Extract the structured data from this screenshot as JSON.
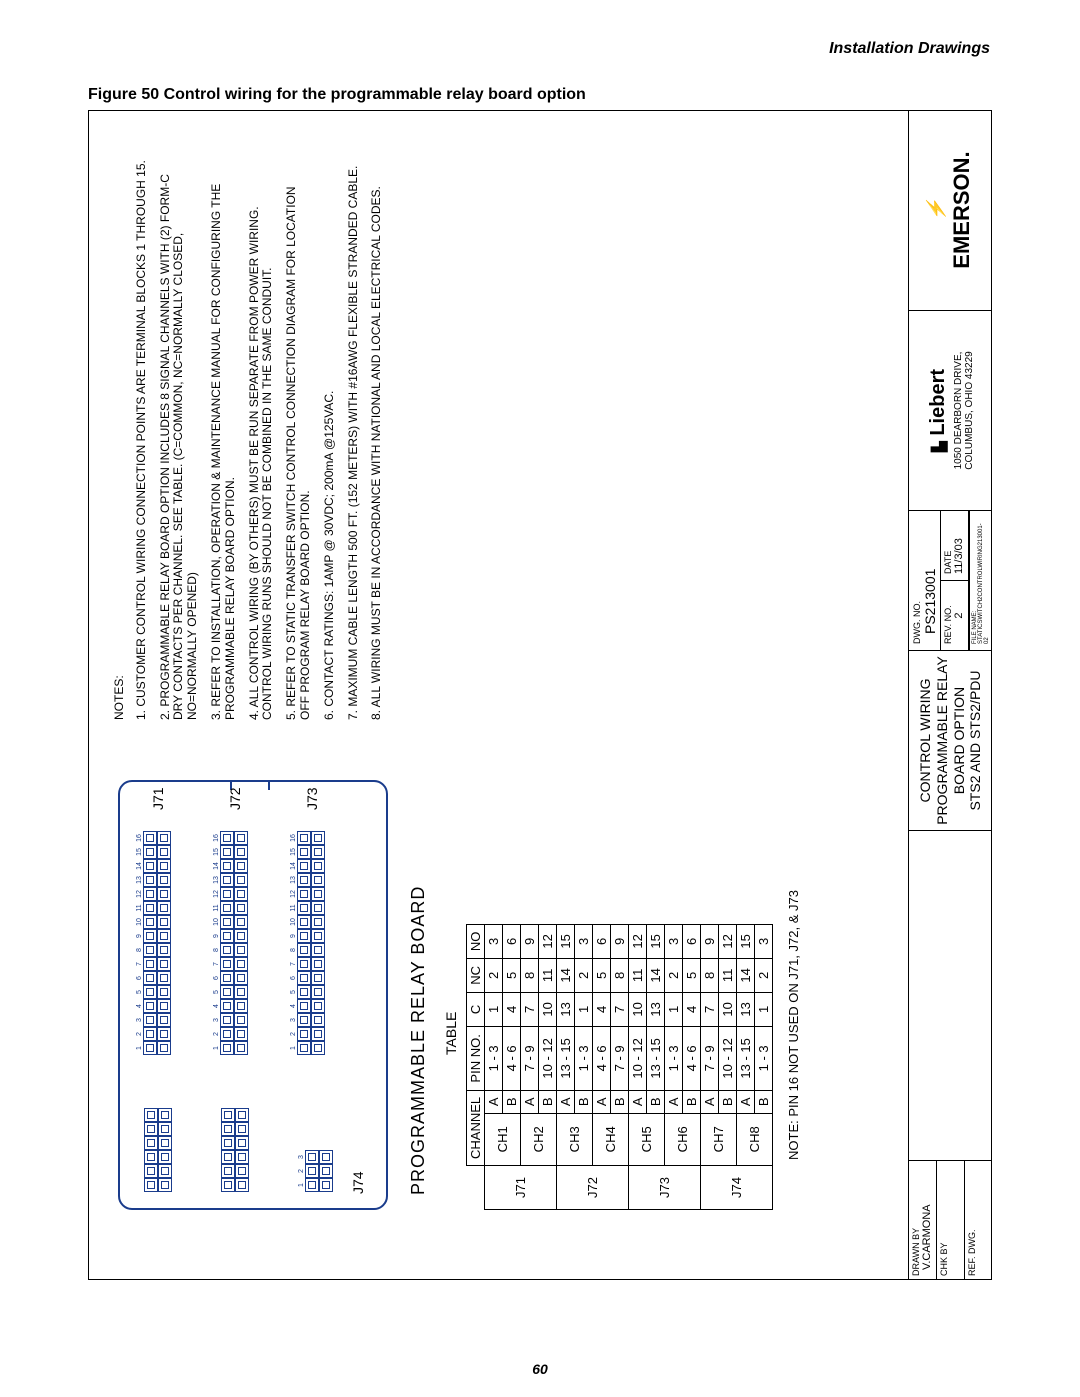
{
  "header": {
    "section": "Installation Drawings"
  },
  "figure": {
    "label": "Figure 50  Control wiring for the programmable relay board option"
  },
  "page_number": "60",
  "board": {
    "title": "PROGRAMMABLE RELAY BOARD",
    "table_label": "TABLE",
    "connectors": {
      "j71": "J71",
      "j72": "J72",
      "j73": "J73",
      "j74": "J74",
      "ticks16": [
        "1",
        "2",
        "3",
        "4",
        "5",
        "6",
        "7",
        "8",
        "9",
        "10",
        "11",
        "12",
        "13",
        "14",
        "15",
        "16"
      ],
      "ticks3": [
        "1",
        "2",
        "3"
      ]
    }
  },
  "pin_table": {
    "headers": [
      "CHANNEL",
      "PIN NO.",
      "C",
      "NC",
      "NO"
    ],
    "groups": [
      {
        "j": "J71",
        "rows": [
          {
            "ch": "CH1",
            "ab": "A",
            "pin": "1 - 3",
            "c": "1",
            "nc": "2",
            "no": "3"
          },
          {
            "ch": "",
            "ab": "B",
            "pin": "4 - 6",
            "c": "4",
            "nc": "5",
            "no": "6"
          },
          {
            "ch": "CH2",
            "ab": "A",
            "pin": "7 - 9",
            "c": "7",
            "nc": "8",
            "no": "9"
          },
          {
            "ch": "",
            "ab": "B",
            "pin": "10 - 12",
            "c": "10",
            "nc": "11",
            "no": "12"
          }
        ]
      },
      {
        "j": "J72",
        "rows": [
          {
            "ch": "CH3",
            "ab": "A",
            "pin": "13 - 15",
            "c": "13",
            "nc": "14",
            "no": "15"
          },
          {
            "ch": "",
            "ab": "B",
            "pin": "1 - 3",
            "c": "1",
            "nc": "2",
            "no": "3"
          },
          {
            "ch": "CH4",
            "ab": "A",
            "pin": "4 - 6",
            "c": "4",
            "nc": "5",
            "no": "6"
          },
          {
            "ch": "",
            "ab": "B",
            "pin": "7 - 9",
            "c": "7",
            "nc": "8",
            "no": "9"
          }
        ]
      },
      {
        "j": "J73",
        "rows": [
          {
            "ch": "CH5",
            "ab": "A",
            "pin": "10 - 12",
            "c": "10",
            "nc": "11",
            "no": "12"
          },
          {
            "ch": "",
            "ab": "B",
            "pin": "13 - 15",
            "c": "13",
            "nc": "14",
            "no": "15"
          },
          {
            "ch": "CH6",
            "ab": "A",
            "pin": "1 - 3",
            "c": "1",
            "nc": "2",
            "no": "3"
          },
          {
            "ch": "",
            "ab": "B",
            "pin": "4 - 6",
            "c": "4",
            "nc": "5",
            "no": "6"
          }
        ]
      },
      {
        "j": "J74",
        "rows": [
          {
            "ch": "CH7",
            "ab": "A",
            "pin": "7 - 9",
            "c": "7",
            "nc": "8",
            "no": "9"
          },
          {
            "ch": "",
            "ab": "B",
            "pin": "10 - 12",
            "c": "10",
            "nc": "11",
            "no": "12"
          },
          {
            "ch": "CH8",
            "ab": "A",
            "pin": "13 - 15",
            "c": "13",
            "nc": "14",
            "no": "15"
          },
          {
            "ch": "",
            "ab": "B",
            "pin": "1 - 3",
            "c": "1",
            "nc": "2",
            "no": "3"
          }
        ]
      }
    ],
    "note": "NOTE: PIN 16 NOT USED ON J71, J72, & J73"
  },
  "notes": {
    "heading": "NOTES:",
    "items": [
      "1. CUSTOMER CONTROL WIRING CONNECTION POINTS ARE TERMINAL BLOCKS 1 THROUGH 15.",
      "2. PROGRAMMABLE RELAY BOARD OPTION INCLUDES 8 SIGNAL CHANNELS WITH (2) FORM-C DRY CONTACTS PER CHANNEL. SEE TABLE. (C=COMMON, NC=NORMALLY CLOSED, NO=NORMALLY OPENED)",
      "3. REFER TO INSTALLATION, OPERATION & MAINTENANCE MANUAL FOR CONFIGURING THE PROGRAMMABLE RELAY BOARD OPTION.",
      "4. ALL CONTROL WIRING (BY OTHERS) MUST BE RUN SEPARATE FROM POWER WIRING. CONTROL WIRING RUNS SHOULD NOT BE COMBINED IN THE SAME CONDUIT.",
      "5. REFER TO STATIC TRANSFER SWITCH CONTROL CONNECTION DIAGRAM FOR LOCATION OFF PROGRAM RELAY BOARD OPTION.",
      "6. CONTACT RATINGS: 1AMP @ 30VDC; 200mA @125VAC.",
      "7. MAXIMUM CABLE LENGTH 500 FT. (152 METERS) WITH #16AWG FLEXIBLE STRANDED CABLE.",
      "8. ALL WIRING MUST BE IN ACCORDANCE WITH NATIONAL AND LOCAL ELECTRICAL CODES."
    ]
  },
  "title_block": {
    "drawn_by_label": "DRAWN BY",
    "drawn_by": "V.CARMONA",
    "chk_by_label": "CHK BY",
    "ref_dwg_label": "REF. DWG.",
    "title_lines": [
      "CONTROL WIRING",
      "PROGRAMMABLE RELAY",
      "BOARD OPTION",
      "STS2 AND STS2/PDU"
    ],
    "dwg_no_label": "DWG. NO.",
    "dwg_no": "PS213001",
    "rev_no_label": "REV. NO.",
    "rev_no": "2",
    "date_label": "DATE",
    "date": "11/3/03",
    "file_label": "FILE NAME:  STATICSWITCH2CONTROLWIRING213001-02",
    "liebert": "Liebert",
    "liebert_addr1": "1050 DEARBORN DRIVE,",
    "liebert_addr2": "COLUMBUS, OHIO 43229",
    "emerson": "EMERSON."
  },
  "colors": {
    "blue": "#1a3c8c",
    "black": "#000000",
    "bg": "#ffffff"
  }
}
